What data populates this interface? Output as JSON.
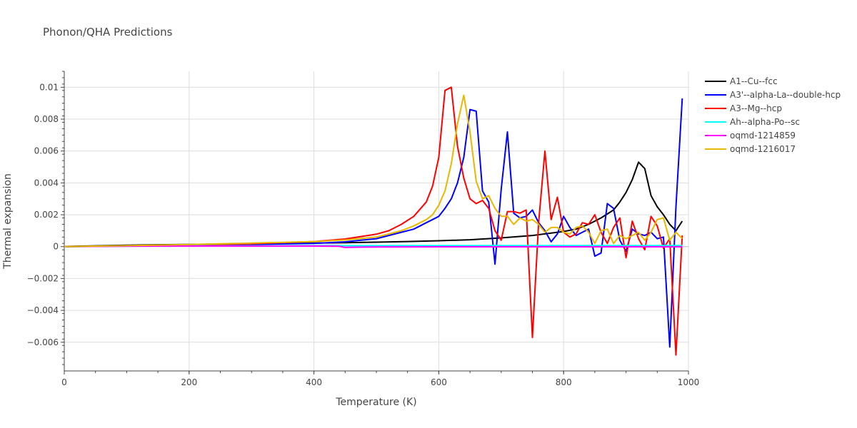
{
  "chart_data": {
    "type": "line",
    "title": "Phonon/QHA Predictions",
    "xlabel": "Temperature (K)",
    "ylabel": "Thermal expansion",
    "xlim": [
      0,
      1000
    ],
    "ylim": [
      -0.0078,
      0.011
    ],
    "grid": true,
    "legend_position": "top-right",
    "x_ticks": [
      0,
      200,
      400,
      600,
      800,
      1000
    ],
    "x_tick_labels": [
      "0",
      "200",
      "400",
      "600",
      "800",
      "1000"
    ],
    "y_ticks": [
      -0.006,
      -0.004,
      -0.002,
      0,
      0.002,
      0.004,
      0.006,
      0.008,
      0.01
    ],
    "y_tick_labels": [
      "−0.006",
      "−0.004",
      "−0.002",
      "0",
      "0.002",
      "0.004",
      "0.006",
      "0.008",
      "0.01"
    ],
    "series": [
      {
        "name": "A1--Cu--fcc",
        "color": "#000000",
        "x": [
          0,
          50,
          100,
          150,
          200,
          250,
          300,
          350,
          400,
          450,
          500,
          550,
          600,
          650,
          700,
          750,
          800,
          820,
          840,
          860,
          880,
          890,
          900,
          910,
          920,
          930,
          940,
          950,
          960,
          970,
          980,
          990
        ],
        "y": [
          1e-05,
          5e-05,
          9e-05,
          0.00012,
          0.00014,
          0.00016,
          0.00018,
          0.0002,
          0.00022,
          0.00025,
          0.00028,
          0.00032,
          0.00037,
          0.00043,
          0.00055,
          0.0007,
          0.00095,
          0.0011,
          0.0014,
          0.0018,
          0.0023,
          0.0028,
          0.0034,
          0.0042,
          0.0053,
          0.0049,
          0.0032,
          0.0025,
          0.002,
          0.0014,
          0.001,
          0.0016
        ]
      },
      {
        "name": "A3'--alpha-La--double-hcp",
        "color": "#0000ff",
        "x": [
          0,
          100,
          200,
          300,
          400,
          450,
          500,
          520,
          540,
          560,
          580,
          590,
          600,
          610,
          620,
          630,
          640,
          650,
          660,
          670,
          680,
          690,
          700,
          710,
          720,
          730,
          740,
          750,
          760,
          770,
          780,
          790,
          800,
          810,
          820,
          830,
          840,
          850,
          860,
          870,
          880,
          890,
          900,
          910,
          920,
          930,
          940,
          950,
          960,
          970,
          980,
          990
        ],
        "y": [
          0.0,
          4e-05,
          9e-05,
          0.00014,
          0.0002,
          0.0003,
          0.0005,
          0.0007,
          0.0009,
          0.0011,
          0.0015,
          0.0017,
          0.0019,
          0.0024,
          0.003,
          0.004,
          0.0056,
          0.0086,
          0.0085,
          0.0035,
          0.0028,
          -0.0011,
          0.0036,
          0.0072,
          0.0021,
          0.0018,
          0.0019,
          0.0023,
          0.0015,
          0.001,
          0.0003,
          0.0008,
          0.0019,
          0.0012,
          0.0007,
          0.0009,
          0.0011,
          -0.0006,
          -0.0004,
          0.0027,
          0.0024,
          0.0004,
          -0.0003,
          0.0011,
          0.0008,
          0.0007,
          0.0009,
          0.0005,
          0.0006,
          -0.0063,
          0.0025,
          0.0093
        ]
      },
      {
        "name": "A3--Mg--hcp",
        "color": "#ff0000",
        "x": [
          0,
          100,
          200,
          300,
          400,
          450,
          500,
          520,
          540,
          560,
          580,
          590,
          600,
          610,
          620,
          630,
          640,
          650,
          660,
          670,
          680,
          690,
          700,
          710,
          720,
          730,
          740,
          750,
          760,
          770,
          780,
          790,
          800,
          810,
          820,
          830,
          840,
          850,
          860,
          870,
          880,
          890,
          900,
          910,
          920,
          930,
          940,
          950,
          960,
          970,
          980,
          990
        ],
        "y": [
          0.0,
          4e-05,
          0.0001,
          0.00018,
          0.00032,
          0.00048,
          0.00078,
          0.001,
          0.0014,
          0.0019,
          0.0028,
          0.0038,
          0.0056,
          0.0098,
          0.01,
          0.0063,
          0.0043,
          0.003,
          0.0027,
          0.0029,
          0.0024,
          0.001,
          0.0004,
          0.0022,
          0.0022,
          0.0021,
          0.0023,
          -0.0057,
          0.0015,
          0.006,
          0.0017,
          0.0031,
          0.0009,
          0.0006,
          0.0008,
          0.0015,
          0.0014,
          0.002,
          0.0009,
          0.0002,
          0.0012,
          0.0018,
          -0.0007,
          0.0016,
          0.0005,
          -0.0002,
          0.0019,
          0.0013,
          -0.0001,
          0.0005,
          -0.0068,
          0.0007
        ]
      },
      {
        "name": "Ah--alpha-Po--sc",
        "color": "#00ffff",
        "x": [
          0,
          100,
          200,
          300,
          400,
          500,
          600,
          700,
          800,
          900,
          990
        ],
        "y": [
          0.0,
          3e-05,
          5e-05,
          6e-05,
          6e-05,
          6e-05,
          7e-05,
          7e-05,
          7e-05,
          7e-05,
          7e-05
        ]
      },
      {
        "name": "oqmd-1214859",
        "color": "#ff00ff",
        "x": [
          0,
          100,
          200,
          300,
          400,
          440,
          450,
          460,
          500,
          600,
          700,
          800,
          900,
          990
        ],
        "y": [
          0.0,
          3e-05,
          4e-05,
          4e-05,
          4e-05,
          2e-05,
          -5e-05,
          -4e-05,
          -2e-05,
          -1e-05,
          -1e-05,
          -1e-05,
          -1e-05,
          -1e-05
        ]
      },
      {
        "name": "oqmd-1216017",
        "color": "#e6b800",
        "x": [
          0,
          100,
          200,
          300,
          400,
          450,
          500,
          520,
          540,
          560,
          580,
          590,
          600,
          610,
          620,
          630,
          640,
          650,
          660,
          670,
          680,
          690,
          700,
          710,
          720,
          730,
          740,
          750,
          760,
          770,
          780,
          790,
          800,
          810,
          820,
          830,
          840,
          850,
          860,
          870,
          880,
          890,
          900,
          910,
          920,
          930,
          940,
          950,
          960,
          970,
          980,
          990
        ],
        "y": [
          0.0,
          6e-05,
          0.00013,
          0.00022,
          0.00032,
          0.00042,
          0.0006,
          0.0008,
          0.001,
          0.0013,
          0.0017,
          0.002,
          0.0026,
          0.0035,
          0.0052,
          0.0077,
          0.0095,
          0.0072,
          0.0041,
          0.003,
          0.0032,
          0.0024,
          0.0019,
          0.0019,
          0.0014,
          0.0018,
          0.0016,
          0.0017,
          0.0014,
          0.0009,
          0.0012,
          0.0012,
          0.0009,
          0.0008,
          0.0012,
          0.0013,
          0.0009,
          0.0002,
          0.001,
          0.0011,
          0.0002,
          0.0007,
          0.0005,
          0.0007,
          0.0009,
          0.0004,
          0.0009,
          0.0017,
          0.0018,
          0.0004,
          0.0009,
          0.0005
        ]
      }
    ]
  }
}
